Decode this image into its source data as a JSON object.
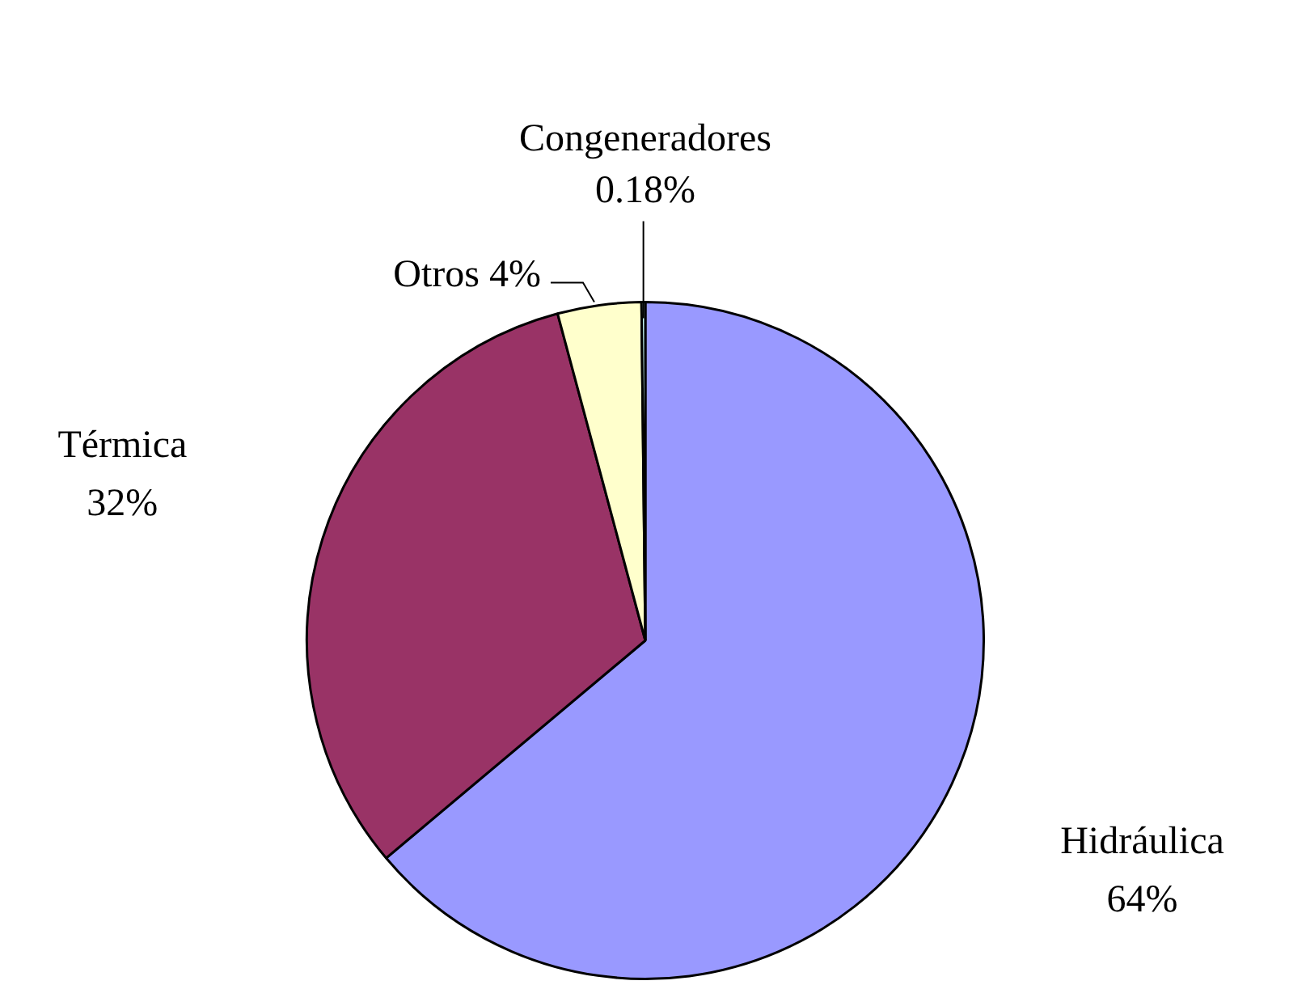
{
  "chart_data": {
    "type": "pie",
    "categories": [
      "Hidráulica",
      "Térmica",
      "Otros",
      "Congeneradores"
    ],
    "values": [
      64,
      32,
      4,
      0.18
    ],
    "colors": [
      "#9999ff",
      "#993366",
      "#ffffcc",
      "#ccffff"
    ],
    "legend": false,
    "value_labels": [
      "64%",
      "32%",
      "4%",
      "0.18%"
    ]
  }
}
